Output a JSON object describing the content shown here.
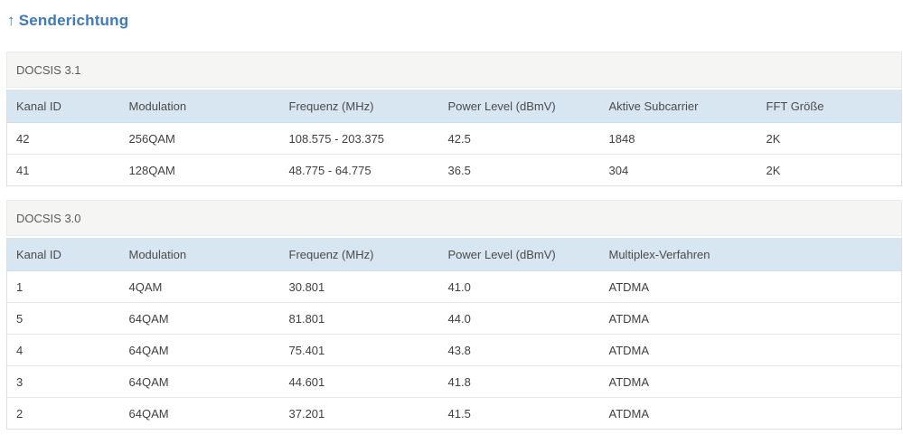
{
  "page": {
    "title_arrow": "↑",
    "title": "Senderichtung"
  },
  "colors": {
    "accent_blue": "#3d7ab8",
    "table_header_bg": "#d8e6f2",
    "section_header_bg": "#f5f5f3"
  },
  "tables": [
    {
      "section": "DOCSIS 3.1",
      "headers": [
        "Kanal ID",
        "Modulation",
        "Frequenz (MHz)",
        "Power Level (dBmV)",
        "Aktive Subcarrier",
        "FFT Größe"
      ],
      "rows": [
        [
          "42",
          "256QAM",
          "108.575 - 203.375",
          "42.5",
          "1848",
          "2K"
        ],
        [
          "41",
          "128QAM",
          "48.775 - 64.775",
          "36.5",
          "304",
          "2K"
        ]
      ]
    },
    {
      "section": "DOCSIS 3.0",
      "headers": [
        "Kanal ID",
        "Modulation",
        "Frequenz (MHz)",
        "Power Level (dBmV)",
        "Multiplex-Verfahren"
      ],
      "rows": [
        [
          "1",
          "4QAM",
          "30.801",
          "41.0",
          "ATDMA"
        ],
        [
          "5",
          "64QAM",
          "81.801",
          "44.0",
          "ATDMA"
        ],
        [
          "4",
          "64QAM",
          "75.401",
          "43.8",
          "ATDMA"
        ],
        [
          "3",
          "64QAM",
          "44.601",
          "41.8",
          "ATDMA"
        ],
        [
          "2",
          "64QAM",
          "37.201",
          "41.5",
          "ATDMA"
        ]
      ]
    }
  ]
}
